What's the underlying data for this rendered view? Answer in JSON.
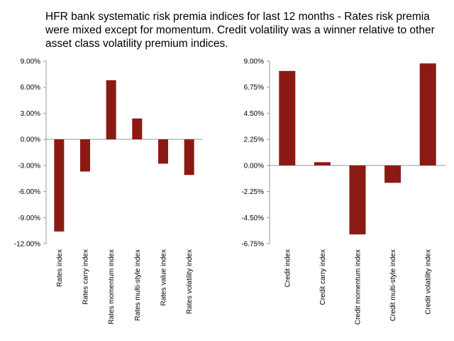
{
  "title": "HFR bank systematic risk premia indices for last 12 months - Rates risk premia were mixed except for momentum. Credit volatility was a winner relative to other asset class volatility premium indices.",
  "colors": {
    "bar": "#8b1a14",
    "axis": "#999999"
  },
  "chart_data": [
    {
      "type": "bar",
      "categories": [
        "Rates index",
        "Rates carry index",
        "Rates momentum index",
        "Rates multi-style index",
        "Rates value index",
        "Rates volatility index"
      ],
      "values": [
        -10.6,
        -3.7,
        6.8,
        2.4,
        -2.8,
        -4.1
      ],
      "unit": "%",
      "ylim": [
        -12,
        9
      ],
      "yticks": [
        9,
        6,
        3,
        0,
        -3,
        -6,
        -9,
        -12
      ],
      "ytick_labels": [
        "9.00%",
        "6.00%",
        "3.00%",
        "0.00%",
        "-3.00%",
        "-6.00%",
        "-9.00%",
        "-12.00%"
      ],
      "grid": false
    },
    {
      "type": "bar",
      "categories": [
        "Credit index",
        "Credit carry index",
        "Credit momentum index",
        "Credit multi-style index",
        "Credit volatility index"
      ],
      "values": [
        8.15,
        0.28,
        -5.95,
        -1.5,
        8.8
      ],
      "unit": "%",
      "ylim": [
        -6.75,
        9
      ],
      "yticks": [
        9,
        6.75,
        4.5,
        2.25,
        0,
        -2.25,
        -4.5,
        -6.75
      ],
      "ytick_labels": [
        "9.00%",
        "6.75%",
        "4.50%",
        "2.25%",
        "0.00%",
        "-2.25%",
        "-4.50%",
        "-6.75%"
      ],
      "grid": false
    }
  ]
}
